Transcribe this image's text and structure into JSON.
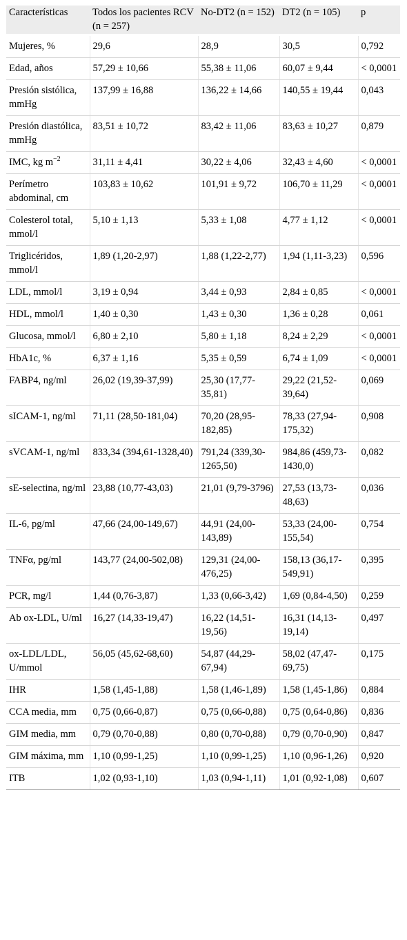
{
  "table": {
    "header": [
      "Características",
      "Todos los pacientes RCV (n = 257)",
      "No-DT2 (n = 152)",
      "DT2 (n = 105)",
      "p"
    ],
    "rows": [
      [
        "Mujeres, %",
        "29,6",
        "28,9",
        "30,5",
        "0,792"
      ],
      [
        "Edad, años",
        "57,29 ± 10,66",
        "55,38 ± 11,06",
        "60,07 ± 9,44",
        "< 0,0001"
      ],
      [
        "Presión sistólica, mmHg",
        "137,99 ± 16,88",
        "136,22 ± 14,66",
        "140,55 ± 19,44",
        "0,043"
      ],
      [
        "Presión diastólica, mmHg",
        "83,51 ± 10,72",
        "83,42 ± 11,06",
        "83,63 ± 10,27",
        "0,879"
      ],
      [
        {
          "text": "IMC, kg m",
          "sup": "−2"
        },
        "31,11 ± 4,41",
        "30,22 ± 4,06",
        "32,43 ± 4,60",
        "< 0,0001"
      ],
      [
        "Perímetro abdominal, cm",
        "103,83 ± 10,62",
        "101,91 ± 9,72",
        "106,70 ± 11,29",
        "< 0,0001"
      ],
      [
        "Colesterol total, mmol/l",
        "5,10 ± 1,13",
        "5,33 ± 1,08",
        "4,77 ± 1,12",
        "< 0,0001"
      ],
      [
        "Triglicéridos, mmol/l",
        "1,89 (1,20-2,97)",
        "1,88 (1,22-2,77)",
        "1,94 (1,11-3,23)",
        "0,596"
      ],
      [
        "LDL, mmol/l",
        "3,19 ± 0,94",
        "3,44 ± 0,93",
        "2,84 ± 0,85",
        "< 0,0001"
      ],
      [
        "HDL, mmol/l",
        "1,40 ± 0,30",
        "1,43 ± 0,30",
        "1,36 ± 0,28",
        "0,061"
      ],
      [
        "Glucosa, mmol/l",
        "6,80 ± 2,10",
        "5,80 ± 1,18",
        "8,24 ± 2,29",
        "< 0,0001"
      ],
      [
        "HbA1c, %",
        "6,37 ± 1,16",
        "5,35 ± 0,59",
        "6,74 ± 1,09",
        "< 0,0001"
      ],
      [
        "FABP4, ng/ml",
        "26,02 (19,39-37,99)",
        "25,30 (17,77-35,81)",
        "29,22 (21,52-39,64)",
        "0,069"
      ],
      [
        "sICAM-1, ng/ml",
        "71,11 (28,50-181,04)",
        "70,20 (28,95-182,85)",
        "78,33 (27,94-175,32)",
        "0,908"
      ],
      [
        "sVCAM-1, ng/ml",
        "833,34 (394,61-1328,40)",
        "791,24 (339,30-1265,50)",
        "984,86 (459,73-1430,0)",
        "0,082"
      ],
      [
        "sE-selectina, ng/ml",
        "23,88 (10,77-43,03)",
        "21,01 (9,79-3796)",
        "27,53 (13,73-48,63)",
        "0,036"
      ],
      [
        "IL-6, pg/ml",
        "47,66 (24,00-149,67)",
        "44,91 (24,00-143,89)",
        "53,33 (24,00-155,54)",
        "0,754"
      ],
      [
        "TNFα, pg/ml",
        "143,77 (24,00-502,08)",
        "129,31 (24,00-476,25)",
        "158,13 (36,17-549,91)",
        "0,395"
      ],
      [
        "PCR, mg/l",
        "1,44 (0,76-3,87)",
        "1,33 (0,66-3,42)",
        "1,69 (0,84-4,50)",
        "0,259"
      ],
      [
        "Ab ox-LDL, U/ml",
        "16,27 (14,33-19,47)",
        "16,22 (14,51-19,56)",
        "16,31 (14,13-19,14)",
        "0,497"
      ],
      [
        "ox-LDL/LDL, U/mmol",
        "56,05 (45,62-68,60)",
        "54,87 (44,29-67,94)",
        "58,02 (47,47-69,75)",
        "0,175"
      ],
      [
        "IHR",
        "1,58 (1,45-1,88)",
        "1,58 (1,46-1,89)",
        "1,58 (1,45-1,86)",
        "0,884"
      ],
      [
        "CCA media, mm",
        "0,75 (0,66-0,87)",
        "0,75 (0,66-0,88)",
        "0,75 (0,64-0,86)",
        "0,836"
      ],
      [
        "GIM media, mm",
        "0,79 (0,70-0,88)",
        "0,80 (0,70-0,88)",
        "0,79 (0,70-0,90)",
        "0,847"
      ],
      [
        "GIM máxima, mm",
        "1,10 (0,99-1,25)",
        "1,10 (0,99-1,25)",
        "1,10 (0,96-1,26)",
        "0,920"
      ],
      [
        "ITB",
        "1,02 (0,93-1,10)",
        "1,03 (0,94-1,11)",
        "1,01 (0,92-1,08)",
        "0,607"
      ]
    ]
  }
}
